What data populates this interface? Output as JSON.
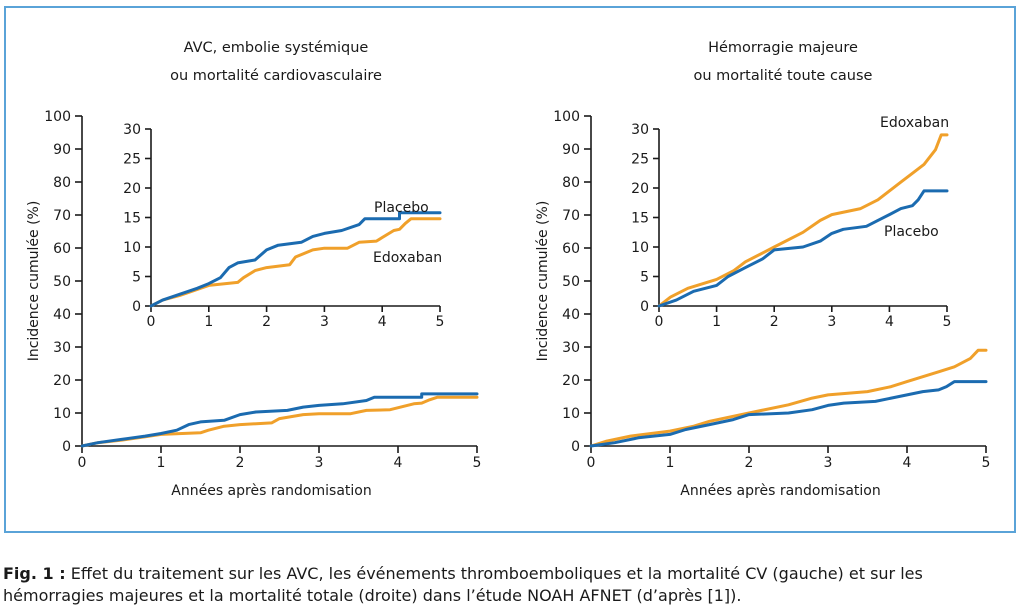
{
  "colors": {
    "placebo": "#1b6bb0",
    "edoxaban": "#f0a02a",
    "frame": "#5aa3d8"
  },
  "left_title": [
    "AVC, embolie systémique",
    "ou mortalité cardiovasculaire"
  ],
  "right_title": [
    "Hémorragie majeure",
    "ou mortalité toute cause"
  ],
  "caption": {
    "label": "Fig. 1 :",
    "text": "Effet du traitement sur les AVC, les événements thromboemboliques et la mortalité CV (gauche) et sur les hémorragies majeures et la mortalité totale (droite) dans l’étude NOAH AFNET (d’après [1])."
  },
  "chart_data": [
    {
      "type": "line",
      "panel": "left-main",
      "xlabel": "Années après randomisation",
      "ylabel": "Incidence cumulée (%)",
      "xlim": [
        0,
        5
      ],
      "ylim": [
        0,
        100
      ],
      "xticks": [
        0,
        1,
        2,
        3,
        4,
        5
      ],
      "yticks": [
        0,
        10,
        20,
        30,
        40,
        50,
        60,
        70,
        80,
        90,
        100
      ],
      "series": [
        {
          "name": "Placebo",
          "color": "#1b6bb0",
          "x": [
            0,
            0.2,
            0.5,
            0.8,
            1.0,
            1.2,
            1.35,
            1.5,
            1.8,
            2.0,
            2.2,
            2.6,
            2.8,
            3.0,
            3.3,
            3.6,
            3.7,
            4.3,
            4.3,
            5.0
          ],
          "y": [
            0,
            1,
            2,
            3,
            3.8,
            4.8,
            6.5,
            7.3,
            7.8,
            9.5,
            10.3,
            10.8,
            11.8,
            12.3,
            12.8,
            13.8,
            14.8,
            14.8,
            15.8,
            15.8
          ]
        },
        {
          "name": "Edoxaban",
          "color": "#f0a02a",
          "x": [
            0,
            0.2,
            0.5,
            0.8,
            1.0,
            1.5,
            1.6,
            1.8,
            2.0,
            2.4,
            2.5,
            2.8,
            3.0,
            3.4,
            3.6,
            3.9,
            4.2,
            4.3,
            4.4,
            4.5,
            5.0
          ],
          "y": [
            0,
            1,
            1.8,
            2.8,
            3.5,
            4,
            4.8,
            6,
            6.5,
            7,
            8.3,
            9.5,
            9.8,
            9.8,
            10.8,
            11,
            12.8,
            13,
            14,
            14.8,
            14.8
          ]
        }
      ]
    },
    {
      "type": "line",
      "panel": "left-inset",
      "xlim": [
        0,
        5
      ],
      "ylim": [
        0,
        30
      ],
      "xticks": [
        0,
        1,
        2,
        3,
        4,
        5
      ],
      "yticks": [
        0,
        5,
        10,
        15,
        20,
        25,
        30
      ],
      "series": [
        {
          "name": "Placebo",
          "color": "#1b6bb0",
          "x": [
            0,
            0.2,
            0.5,
            0.8,
            1.0,
            1.2,
            1.35,
            1.5,
            1.8,
            2.0,
            2.2,
            2.6,
            2.8,
            3.0,
            3.3,
            3.6,
            3.7,
            4.3,
            4.3,
            5.0
          ],
          "y": [
            0,
            1,
            2,
            3,
            3.8,
            4.8,
            6.5,
            7.3,
            7.8,
            9.5,
            10.3,
            10.8,
            11.8,
            12.3,
            12.8,
            13.8,
            14.8,
            14.8,
            15.8,
            15.8
          ]
        },
        {
          "name": "Edoxaban",
          "color": "#f0a02a",
          "x": [
            0,
            0.2,
            0.5,
            0.8,
            1.0,
            1.5,
            1.6,
            1.8,
            2.0,
            2.4,
            2.5,
            2.8,
            3.0,
            3.4,
            3.6,
            3.9,
            4.2,
            4.3,
            4.4,
            4.5,
            5.0
          ],
          "y": [
            0,
            1,
            1.8,
            2.8,
            3.5,
            4,
            4.8,
            6,
            6.5,
            7,
            8.3,
            9.5,
            9.8,
            9.8,
            10.8,
            11,
            12.8,
            13,
            14,
            14.8,
            14.8
          ]
        }
      ]
    },
    {
      "type": "line",
      "panel": "right-main",
      "xlabel": "Années après randomisation",
      "ylabel": "Incidence cumulée (%)",
      "xlim": [
        0,
        5
      ],
      "ylim": [
        0,
        100
      ],
      "xticks": [
        0,
        1,
        2,
        3,
        4,
        5
      ],
      "yticks": [
        0,
        10,
        20,
        30,
        40,
        50,
        60,
        70,
        80,
        90,
        100
      ],
      "series": [
        {
          "name": "Placebo",
          "color": "#1b6bb0",
          "x": [
            0,
            0.3,
            0.6,
            1.0,
            1.2,
            1.5,
            1.8,
            2.0,
            2.5,
            2.8,
            3.0,
            3.2,
            3.6,
            3.8,
            4.0,
            4.2,
            4.4,
            4.5,
            4.6,
            5.0
          ],
          "y": [
            0,
            1,
            2.5,
            3.5,
            5,
            6.5,
            8,
            9.5,
            10,
            11,
            12.3,
            13,
            13.5,
            14.5,
            15.5,
            16.5,
            17,
            18,
            19.5,
            19.5
          ]
        },
        {
          "name": "Edoxaban",
          "color": "#f0a02a",
          "x": [
            0,
            0.2,
            0.5,
            1.0,
            1.3,
            1.5,
            2.0,
            2.5,
            2.8,
            3.0,
            3.5,
            3.8,
            4.0,
            4.2,
            4.4,
            4.6,
            4.8,
            4.9,
            5.0
          ],
          "y": [
            0,
            1.5,
            3,
            4.5,
            6,
            7.5,
            10,
            12.5,
            14.5,
            15.5,
            16.5,
            18,
            19.5,
            21,
            22.5,
            24,
            26.5,
            29,
            29
          ]
        }
      ]
    },
    {
      "type": "line",
      "panel": "right-inset",
      "xlim": [
        0,
        5
      ],
      "ylim": [
        0,
        30
      ],
      "xticks": [
        0,
        1,
        2,
        3,
        4,
        5
      ],
      "yticks": [
        0,
        5,
        10,
        15,
        20,
        25,
        30
      ],
      "series": [
        {
          "name": "Placebo",
          "color": "#1b6bb0",
          "x": [
            0,
            0.3,
            0.6,
            1.0,
            1.2,
            1.5,
            1.8,
            2.0,
            2.5,
            2.8,
            3.0,
            3.2,
            3.6,
            3.8,
            4.0,
            4.2,
            4.4,
            4.5,
            4.6,
            5.0
          ],
          "y": [
            0,
            1,
            2.5,
            3.5,
            5,
            6.5,
            8,
            9.5,
            10,
            11,
            12.3,
            13,
            13.5,
            14.5,
            15.5,
            16.5,
            17,
            18,
            19.5,
            19.5
          ]
        },
        {
          "name": "Edoxaban",
          "color": "#f0a02a",
          "x": [
            0,
            0.2,
            0.5,
            1.0,
            1.3,
            1.5,
            2.0,
            2.5,
            2.8,
            3.0,
            3.5,
            3.8,
            4.0,
            4.2,
            4.4,
            4.6,
            4.8,
            4.9,
            5.0
          ],
          "y": [
            0,
            1.5,
            3,
            4.5,
            6,
            7.5,
            10,
            12.5,
            14.5,
            15.5,
            16.5,
            18,
            19.5,
            21,
            22.5,
            24,
            26.5,
            29,
            29
          ]
        }
      ]
    }
  ]
}
